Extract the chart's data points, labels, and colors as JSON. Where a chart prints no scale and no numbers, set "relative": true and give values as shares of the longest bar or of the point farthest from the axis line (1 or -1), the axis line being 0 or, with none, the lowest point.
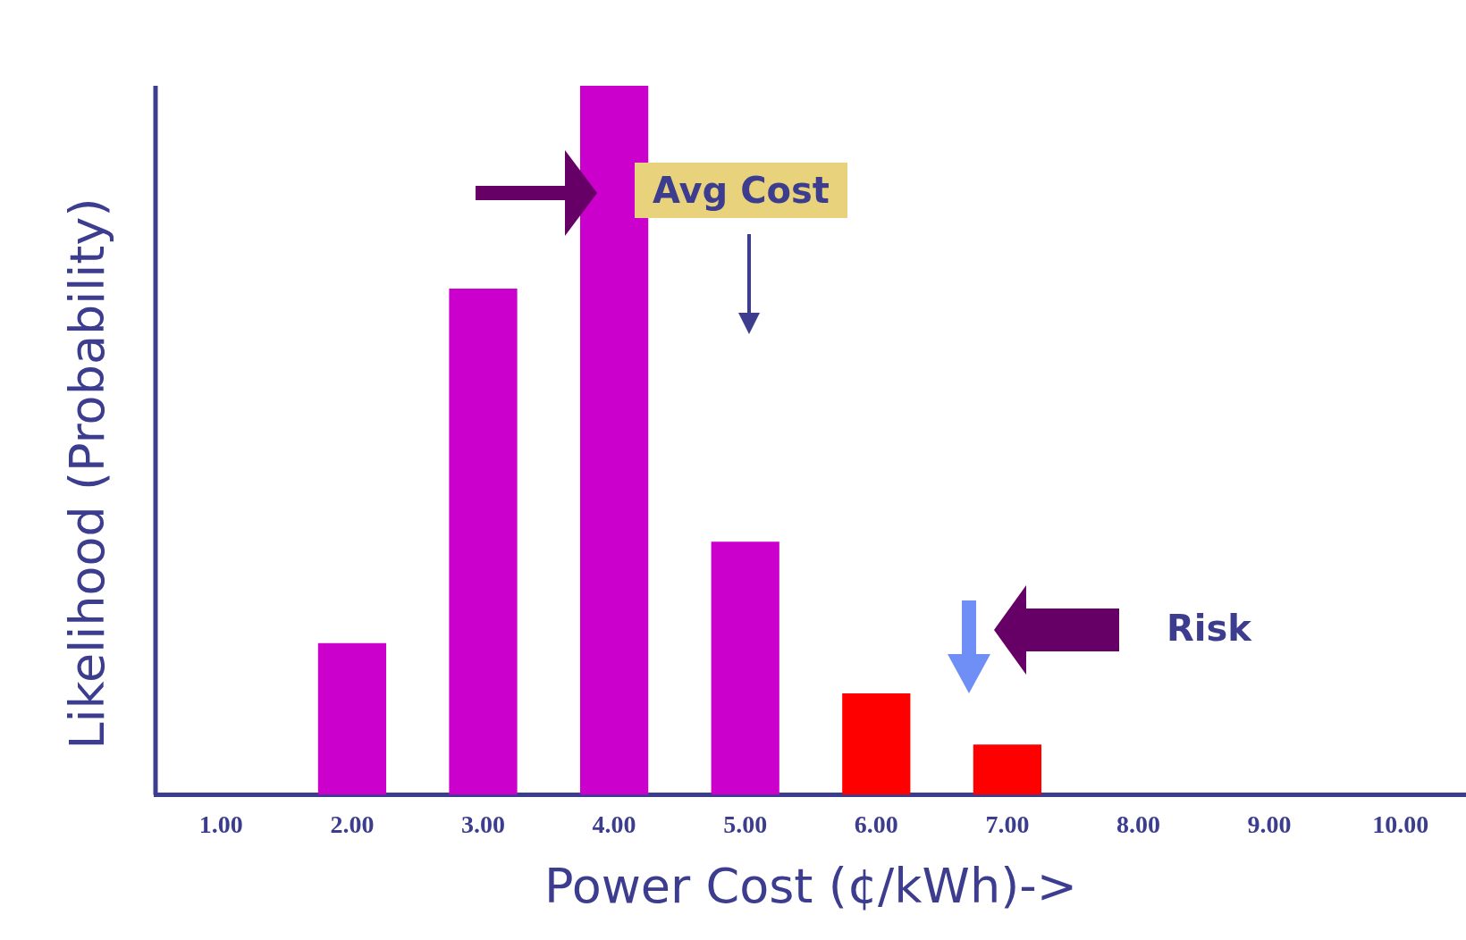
{
  "chart_data": {
    "type": "bar",
    "relative": true,
    "xlabel": "Power Cost (¢/kWh)->",
    "ylabel": "Likelihood (Probability)",
    "categories": [
      "1.00",
      "2.00",
      "3.00",
      "4.00",
      "5.00",
      "6.00",
      "7.00",
      "8.00",
      "9.00",
      "10.00"
    ],
    "values": [
      0,
      0.214,
      0.714,
      1,
      0.357,
      0.143,
      0.071,
      0,
      0,
      0
    ],
    "colors": [
      "#cc00cc",
      "#cc00cc",
      "#cc00cc",
      "#cc00cc",
      "#cc00cc",
      "#ff0000",
      "#ff0000",
      "#cc00cc",
      "#cc00cc",
      "#cc00cc"
    ],
    "annotations": [
      "Avg Cost",
      "Risk"
    ],
    "grid": false,
    "legend": false
  }
}
